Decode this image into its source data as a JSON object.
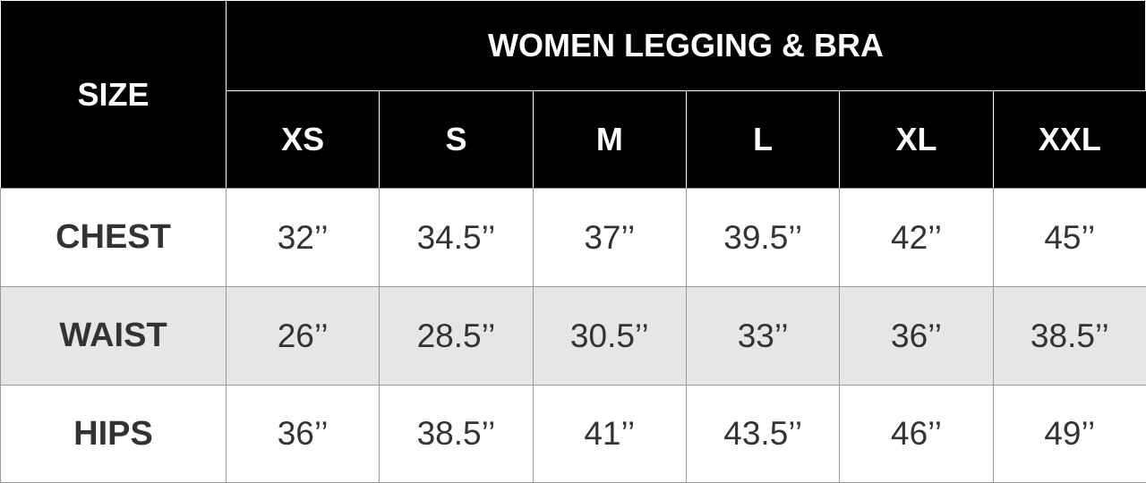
{
  "table": {
    "corner": "SIZE",
    "title": "WOMEN LEGGING & BRA",
    "sizes": [
      "XS",
      "S",
      "M",
      "L",
      "XL",
      "XXL"
    ],
    "rows": [
      {
        "label": "CHEST",
        "cells": [
          "32’’",
          "34.5’’",
          "37’’",
          "39.5’’",
          "42’’",
          "45’’"
        ]
      },
      {
        "label": "WAIST",
        "cells": [
          "26’’",
          "28.5’’",
          "30.5’’",
          "33’’",
          "36’’",
          "38.5’’"
        ]
      },
      {
        "label": "HIPS",
        "cells": [
          "36’’",
          "38.5’’",
          "41’’",
          "43.5’’",
          "46’’",
          "49’’"
        ]
      }
    ]
  }
}
